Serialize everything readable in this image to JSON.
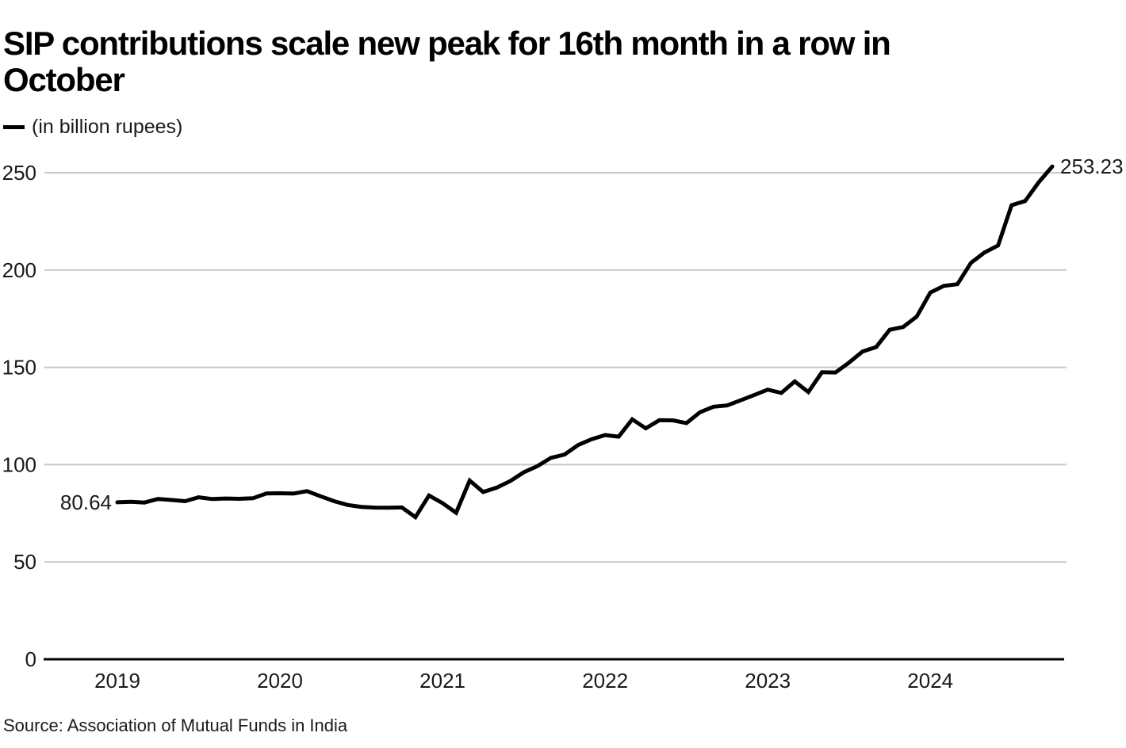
{
  "title": "SIP contributions scale new peak for 16th month in a row in October",
  "title_lines": [
    "SIP contributions scale new peak for 16th month in a row in",
    "October"
  ],
  "legend": {
    "label": "(in billion rupees)"
  },
  "source": "Source: Association of Mutual Funds in India",
  "colors": {
    "line": "#000000",
    "grid": "#c8c8c8",
    "axis": "#000000",
    "text": "#1a1a1a"
  },
  "chart_data": {
    "type": "line",
    "title": "SIP contributions scale new peak for 16th month in a row in October",
    "unit_label": "(in billion rupees)",
    "x_start_month": "2019-01",
    "x_end_month": "2024-10",
    "x_tick_labels": [
      "2019",
      "2020",
      "2021",
      "2022",
      "2023",
      "2024"
    ],
    "y_ticks": [
      0,
      50,
      100,
      150,
      200,
      250
    ],
    "y_tick_labels": [
      "0",
      "50",
      "100",
      "150",
      "200",
      "250"
    ],
    "ylim": [
      0,
      262
    ],
    "grid": "horizontal",
    "legend_position": "top-left",
    "series": [
      {
        "name": "SIP contributions (billion rupees)",
        "values": [
          80.64,
          80.95,
          80.55,
          82.38,
          81.83,
          81.22,
          83.24,
          82.31,
          82.63,
          82.46,
          82.73,
          85.18,
          85.32,
          85.13,
          86.41,
          83.76,
          81.23,
          79.27,
          78.31,
          77.92,
          77.88,
          78.0,
          73.02,
          84.18,
          80.23,
          75.28,
          91.82,
          85.96,
          88.19,
          91.56,
          96.1,
          99.23,
          103.51,
          105.19,
          110.05,
          113.05,
          115.17,
          114.38,
          123.28,
          118.63,
          122.86,
          122.76,
          121.37,
          126.93,
          129.76,
          130.41,
          133.06,
          135.73,
          138.56,
          136.86,
          142.76,
          137.28,
          147.49,
          147.34,
          152.45,
          158.14,
          160.42,
          169.28,
          170.73,
          176.1,
          188.38,
          191.87,
          192.71,
          203.71,
          209.04,
          212.62,
          233.32,
          235.47,
          245.09,
          253.23
        ]
      }
    ],
    "first_point_label": "80.64",
    "last_point_label": "253.23"
  }
}
